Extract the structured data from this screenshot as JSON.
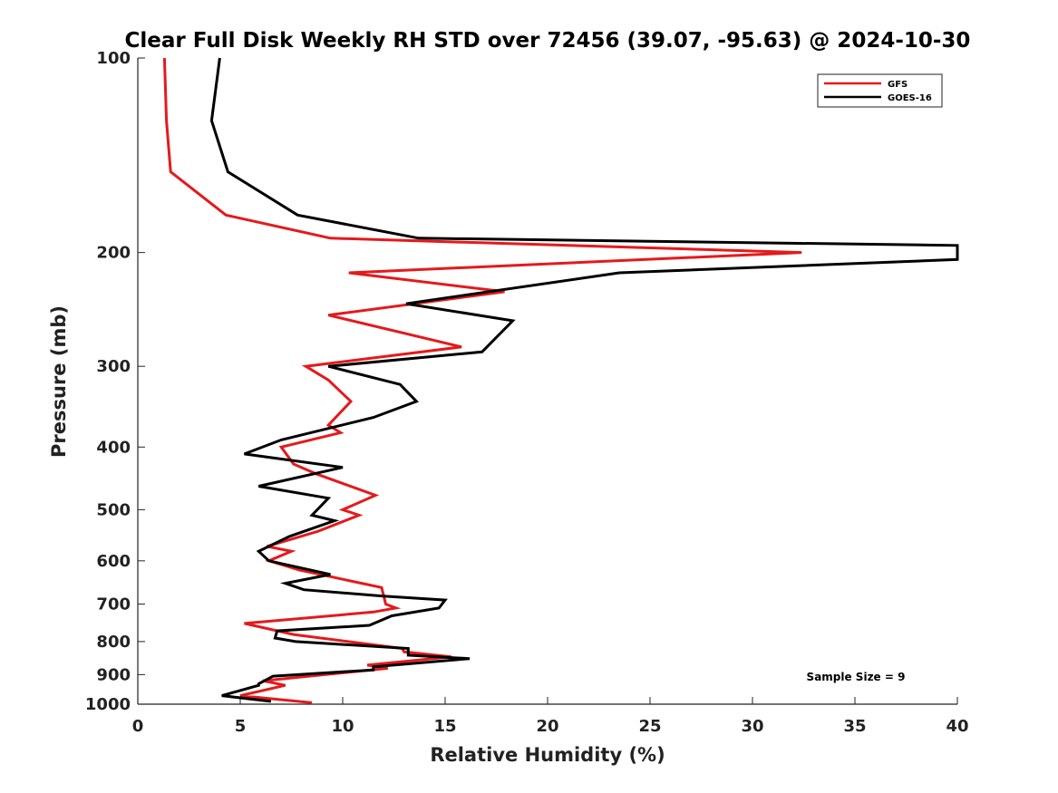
{
  "chart_data": {
    "type": "line",
    "title": "Clear Full Disk Weekly RH STD over 72456 (39.07, -95.63) @ 2024-10-30",
    "xlabel": "Relative Humidity (%)",
    "ylabel": "Pressure (mb)",
    "xlim": [
      0,
      40
    ],
    "ylim": [
      100,
      1000
    ],
    "yscale": "log",
    "y_reversed": true,
    "xticks": [
      0,
      5,
      10,
      15,
      20,
      25,
      30,
      35,
      40
    ],
    "yticks": [
      100,
      200,
      300,
      400,
      500,
      600,
      700,
      800,
      900,
      1000
    ],
    "grid": false,
    "legend_position": "top-right",
    "annotation": "Sample Size = 9",
    "series": [
      {
        "name": "GFS",
        "color": "#e41a1c",
        "points": [
          [
            1.3,
            100
          ],
          [
            1.4,
            125
          ],
          [
            1.6,
            150
          ],
          [
            4.3,
            175
          ],
          [
            9.4,
            190
          ],
          [
            32.4,
            200
          ],
          [
            10.3,
            215
          ],
          [
            17.9,
            230
          ],
          [
            9.3,
            250
          ],
          [
            15.8,
            280
          ],
          [
            8.2,
            300
          ],
          [
            9.3,
            315
          ],
          [
            10.4,
            340
          ],
          [
            9.3,
            370
          ],
          [
            9.9,
            380
          ],
          [
            7.0,
            400
          ],
          [
            7.6,
            425
          ],
          [
            8.7,
            440
          ],
          [
            11.6,
            475
          ],
          [
            10.0,
            500
          ],
          [
            10.8,
            510
          ],
          [
            8.8,
            540
          ],
          [
            6.3,
            570
          ],
          [
            7.5,
            580
          ],
          [
            6.4,
            600
          ],
          [
            7.9,
            620
          ],
          [
            11.9,
            660
          ],
          [
            12.1,
            700
          ],
          [
            12.6,
            710
          ],
          [
            11.5,
            720
          ],
          [
            5.2,
            750
          ],
          [
            7.6,
            780
          ],
          [
            12.9,
            820
          ],
          [
            13.0,
            830
          ],
          [
            15.3,
            845
          ],
          [
            11.2,
            870
          ],
          [
            12.2,
            880
          ],
          [
            6.1,
            920
          ],
          [
            7.2,
            935
          ],
          [
            5.0,
            970
          ],
          [
            8.5,
            995
          ]
        ]
      },
      {
        "name": "GOES-16",
        "color": "#000000",
        "points": [
          [
            4.0,
            100
          ],
          [
            3.6,
            125
          ],
          [
            4.4,
            150
          ],
          [
            7.8,
            175
          ],
          [
            13.7,
            190
          ],
          [
            40.0,
            195
          ],
          [
            40.0,
            205
          ],
          [
            23.5,
            215
          ],
          [
            13.1,
            240
          ],
          [
            18.3,
            255
          ],
          [
            16.8,
            285
          ],
          [
            9.3,
            300
          ],
          [
            12.8,
            320
          ],
          [
            13.6,
            340
          ],
          [
            11.5,
            360
          ],
          [
            7.0,
            390
          ],
          [
            5.2,
            410
          ],
          [
            10.0,
            430
          ],
          [
            5.9,
            460
          ],
          [
            9.3,
            480
          ],
          [
            8.5,
            510
          ],
          [
            9.6,
            520
          ],
          [
            7.4,
            550
          ],
          [
            5.9,
            580
          ],
          [
            6.4,
            600
          ],
          [
            9.4,
            630
          ],
          [
            7.2,
            650
          ],
          [
            8.1,
            665
          ],
          [
            11.9,
            680
          ],
          [
            15.0,
            690
          ],
          [
            14.7,
            710
          ],
          [
            12.4,
            730
          ],
          [
            11.3,
            755
          ],
          [
            6.8,
            770
          ],
          [
            6.7,
            790
          ],
          [
            7.7,
            800
          ],
          [
            13.2,
            820
          ],
          [
            13.2,
            840
          ],
          [
            16.2,
            850
          ],
          [
            11.5,
            875
          ],
          [
            11.5,
            885
          ],
          [
            6.6,
            905
          ],
          [
            5.9,
            930
          ],
          [
            5.9,
            935
          ],
          [
            4.1,
            970
          ],
          [
            6.5,
            990
          ]
        ]
      }
    ]
  }
}
